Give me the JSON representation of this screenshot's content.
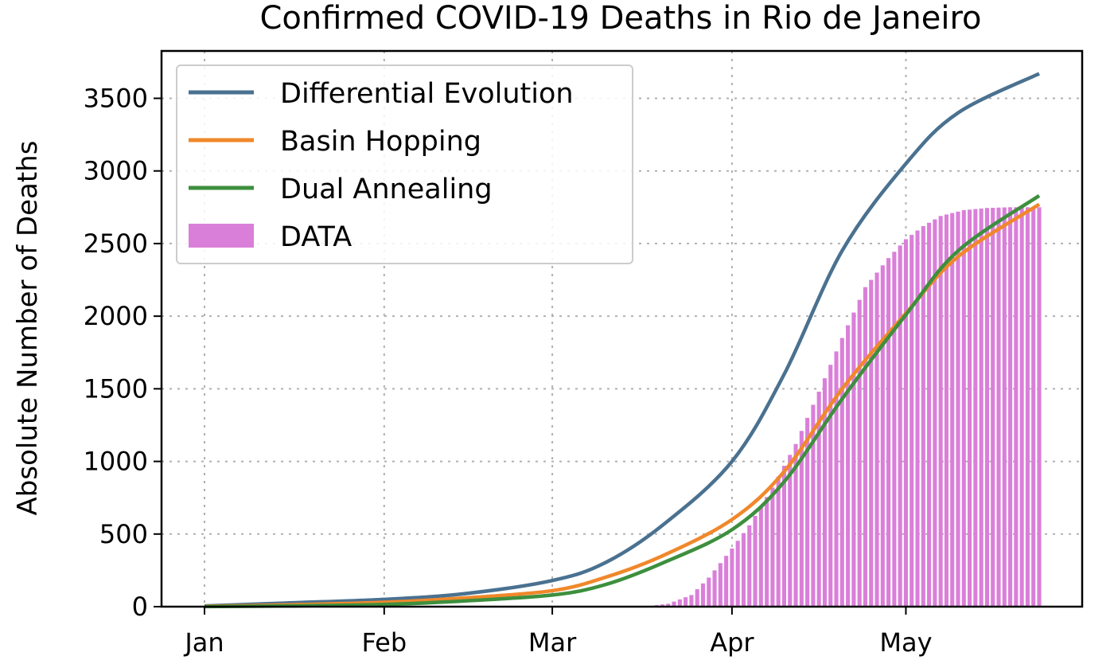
{
  "chart_data": {
    "type": "bar",
    "title": "Confirmed COVID-19 Deaths in Rio de Janeiro",
    "xlabel": "",
    "ylabel": "Absolute Number of Deaths",
    "xlim": [
      "2020-01-01",
      "2020-05-24"
    ],
    "ylim": [
      0,
      3700
    ],
    "yticks": [
      0,
      500,
      1000,
      1500,
      2000,
      2500,
      3000,
      3500
    ],
    "xticks": [
      {
        "label": "Jan",
        "date": "2020-01-01"
      },
      {
        "label": "Feb",
        "date": "2020-02-01"
      },
      {
        "label": "Mar",
        "date": "2020-03-01"
      },
      {
        "label": "Apr",
        "date": "2020-04-01"
      },
      {
        "label": "May",
        "date": "2020-05-01"
      }
    ],
    "grid": true,
    "legend_position": "top-left",
    "legend": [
      "Differential Evolution",
      "Basin Hopping",
      "Dual Annealing",
      "DATA"
    ],
    "series": [
      {
        "name": "Differential Evolution",
        "type": "line",
        "color": "#4a7190",
        "x": [
          "2020-01-01",
          "2020-01-15",
          "2020-02-01",
          "2020-02-15",
          "2020-03-01",
          "2020-03-10",
          "2020-03-20",
          "2020-04-01",
          "2020-04-10",
          "2020-04-20",
          "2020-05-01",
          "2020-05-10",
          "2020-05-24"
        ],
        "y": [
          5,
          25,
          50,
          90,
          180,
          300,
          560,
          1000,
          1600,
          2450,
          3050,
          3400,
          3670
        ]
      },
      {
        "name": "Basin Hopping",
        "type": "line",
        "color": "#f0882a",
        "x": [
          "2020-01-01",
          "2020-01-15",
          "2020-02-01",
          "2020-02-15",
          "2020-03-01",
          "2020-03-10",
          "2020-03-20",
          "2020-04-01",
          "2020-04-10",
          "2020-04-20",
          "2020-05-01",
          "2020-05-10",
          "2020-05-24"
        ],
        "y": [
          3,
          12,
          30,
          60,
          110,
          200,
          350,
          600,
          930,
          1500,
          2020,
          2410,
          2770
        ]
      },
      {
        "name": "Dual Annealing",
        "type": "line",
        "color": "#3d8f3d",
        "x": [
          "2020-01-01",
          "2020-01-15",
          "2020-02-01",
          "2020-02-15",
          "2020-03-01",
          "2020-03-10",
          "2020-03-20",
          "2020-04-01",
          "2020-04-10",
          "2020-04-20",
          "2020-05-01",
          "2020-05-10",
          "2020-05-24"
        ],
        "y": [
          1,
          5,
          15,
          40,
          80,
          150,
          300,
          530,
          860,
          1430,
          2010,
          2450,
          2830
        ]
      },
      {
        "name": "DATA",
        "type": "bar",
        "color": "#da7fd9",
        "x": [
          "2020-03-17",
          "2020-03-21",
          "2020-03-25",
          "2020-03-28",
          "2020-04-01",
          "2020-04-04",
          "2020-04-08",
          "2020-04-12",
          "2020-04-16",
          "2020-04-20",
          "2020-04-24",
          "2020-04-28",
          "2020-05-01",
          "2020-05-04",
          "2020-05-07",
          "2020-05-11",
          "2020-05-15",
          "2020-05-19",
          "2020-05-24"
        ],
        "y": [
          1,
          20,
          80,
          200,
          400,
          560,
          820,
          1120,
          1480,
          1850,
          2200,
          2400,
          2530,
          2620,
          2690,
          2730,
          2745,
          2750,
          2750
        ]
      }
    ]
  }
}
